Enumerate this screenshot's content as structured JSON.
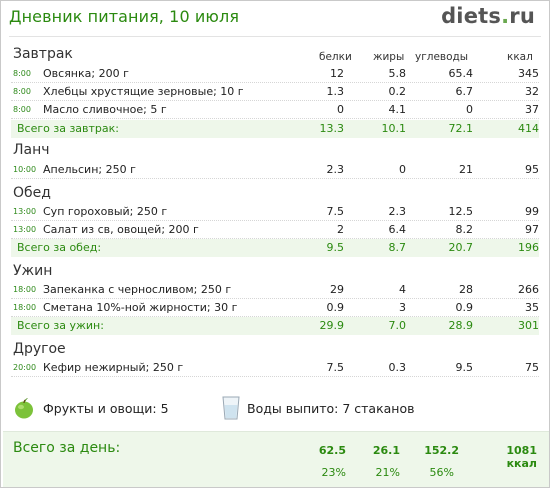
{
  "header": {
    "title": "Дневник питания, 10 июля",
    "logo_main": "diets",
    "logo_dot": ".",
    "logo_tld": "ru"
  },
  "columns": {
    "protein": "белки",
    "fat": "жиры",
    "carbs": "углеводы",
    "kcal": "ккал"
  },
  "meals": {
    "breakfast": {
      "title": "Завтрак",
      "items": [
        {
          "time": "8:00",
          "name": "Овсянка; 200 г",
          "protein": "12",
          "fat": "5.8",
          "carbs": "65.4",
          "kcal": "345"
        },
        {
          "time": "8:00",
          "name": "Хлебцы хрустящие зерновые; 10 г",
          "protein": "1.3",
          "fat": "0.2",
          "carbs": "6.7",
          "kcal": "32"
        },
        {
          "time": "8:00",
          "name": "Масло сливочное; 5 г",
          "protein": "0",
          "fat": "4.1",
          "carbs": "0",
          "kcal": "37"
        }
      ],
      "total": {
        "label": "Всего за завтрак:",
        "protein": "13.3",
        "fat": "10.1",
        "carbs": "72.1",
        "kcal": "414"
      }
    },
    "lunch": {
      "title": "Ланч",
      "items": [
        {
          "time": "10:00",
          "name": "Апельсин; 250 г",
          "protein": "2.3",
          "fat": "0",
          "carbs": "21",
          "kcal": "95"
        }
      ]
    },
    "dinner": {
      "title": "Обед",
      "items": [
        {
          "time": "13:00",
          "name": "Суп гороховый; 250 г",
          "protein": "7.5",
          "fat": "2.3",
          "carbs": "12.5",
          "kcal": "99"
        },
        {
          "time": "13:00",
          "name": "Салат из св, овощей; 200 г",
          "protein": "2",
          "fat": "6.4",
          "carbs": "8.2",
          "kcal": "97"
        }
      ],
      "total": {
        "label": "Всего за обед:",
        "protein": "9.5",
        "fat": "8.7",
        "carbs": "20.7",
        "kcal": "196"
      }
    },
    "supper": {
      "title": "Ужин",
      "items": [
        {
          "time": "18:00",
          "name": "Запеканка с черносливом; 250 г",
          "protein": "29",
          "fat": "4",
          "carbs": "28",
          "kcal": "266"
        },
        {
          "time": "18:00",
          "name": "Сметана 10%-ной жирности; 30 г",
          "protein": "0.9",
          "fat": "3",
          "carbs": "0.9",
          "kcal": "35"
        }
      ],
      "total": {
        "label": "Всего за ужин:",
        "protein": "29.9",
        "fat": "7.0",
        "carbs": "28.9",
        "kcal": "301"
      }
    },
    "other": {
      "title": "Другое",
      "items": [
        {
          "time": "20:00",
          "name": "Кефир нежирный; 250 г",
          "protein": "7.5",
          "fat": "0.3",
          "carbs": "9.5",
          "kcal": "75"
        }
      ]
    }
  },
  "extras": {
    "fruit_label": "Фрукты и овощи: 5",
    "water_label": "Воды выпито: 7 стаканов",
    "fruit_icon": "green-apple-icon",
    "water_icon": "water-glass-icon"
  },
  "day_total": {
    "label": "Всего за день:",
    "protein": "62.5",
    "fat": "26.1",
    "carbs": "152.2",
    "kcal": "1081 ккал",
    "protein_pct": "23%",
    "fat_pct": "21%",
    "carbs_pct": "56%"
  },
  "colors": {
    "accent": "#2b8a10",
    "total_bg": "#eef7ea"
  }
}
